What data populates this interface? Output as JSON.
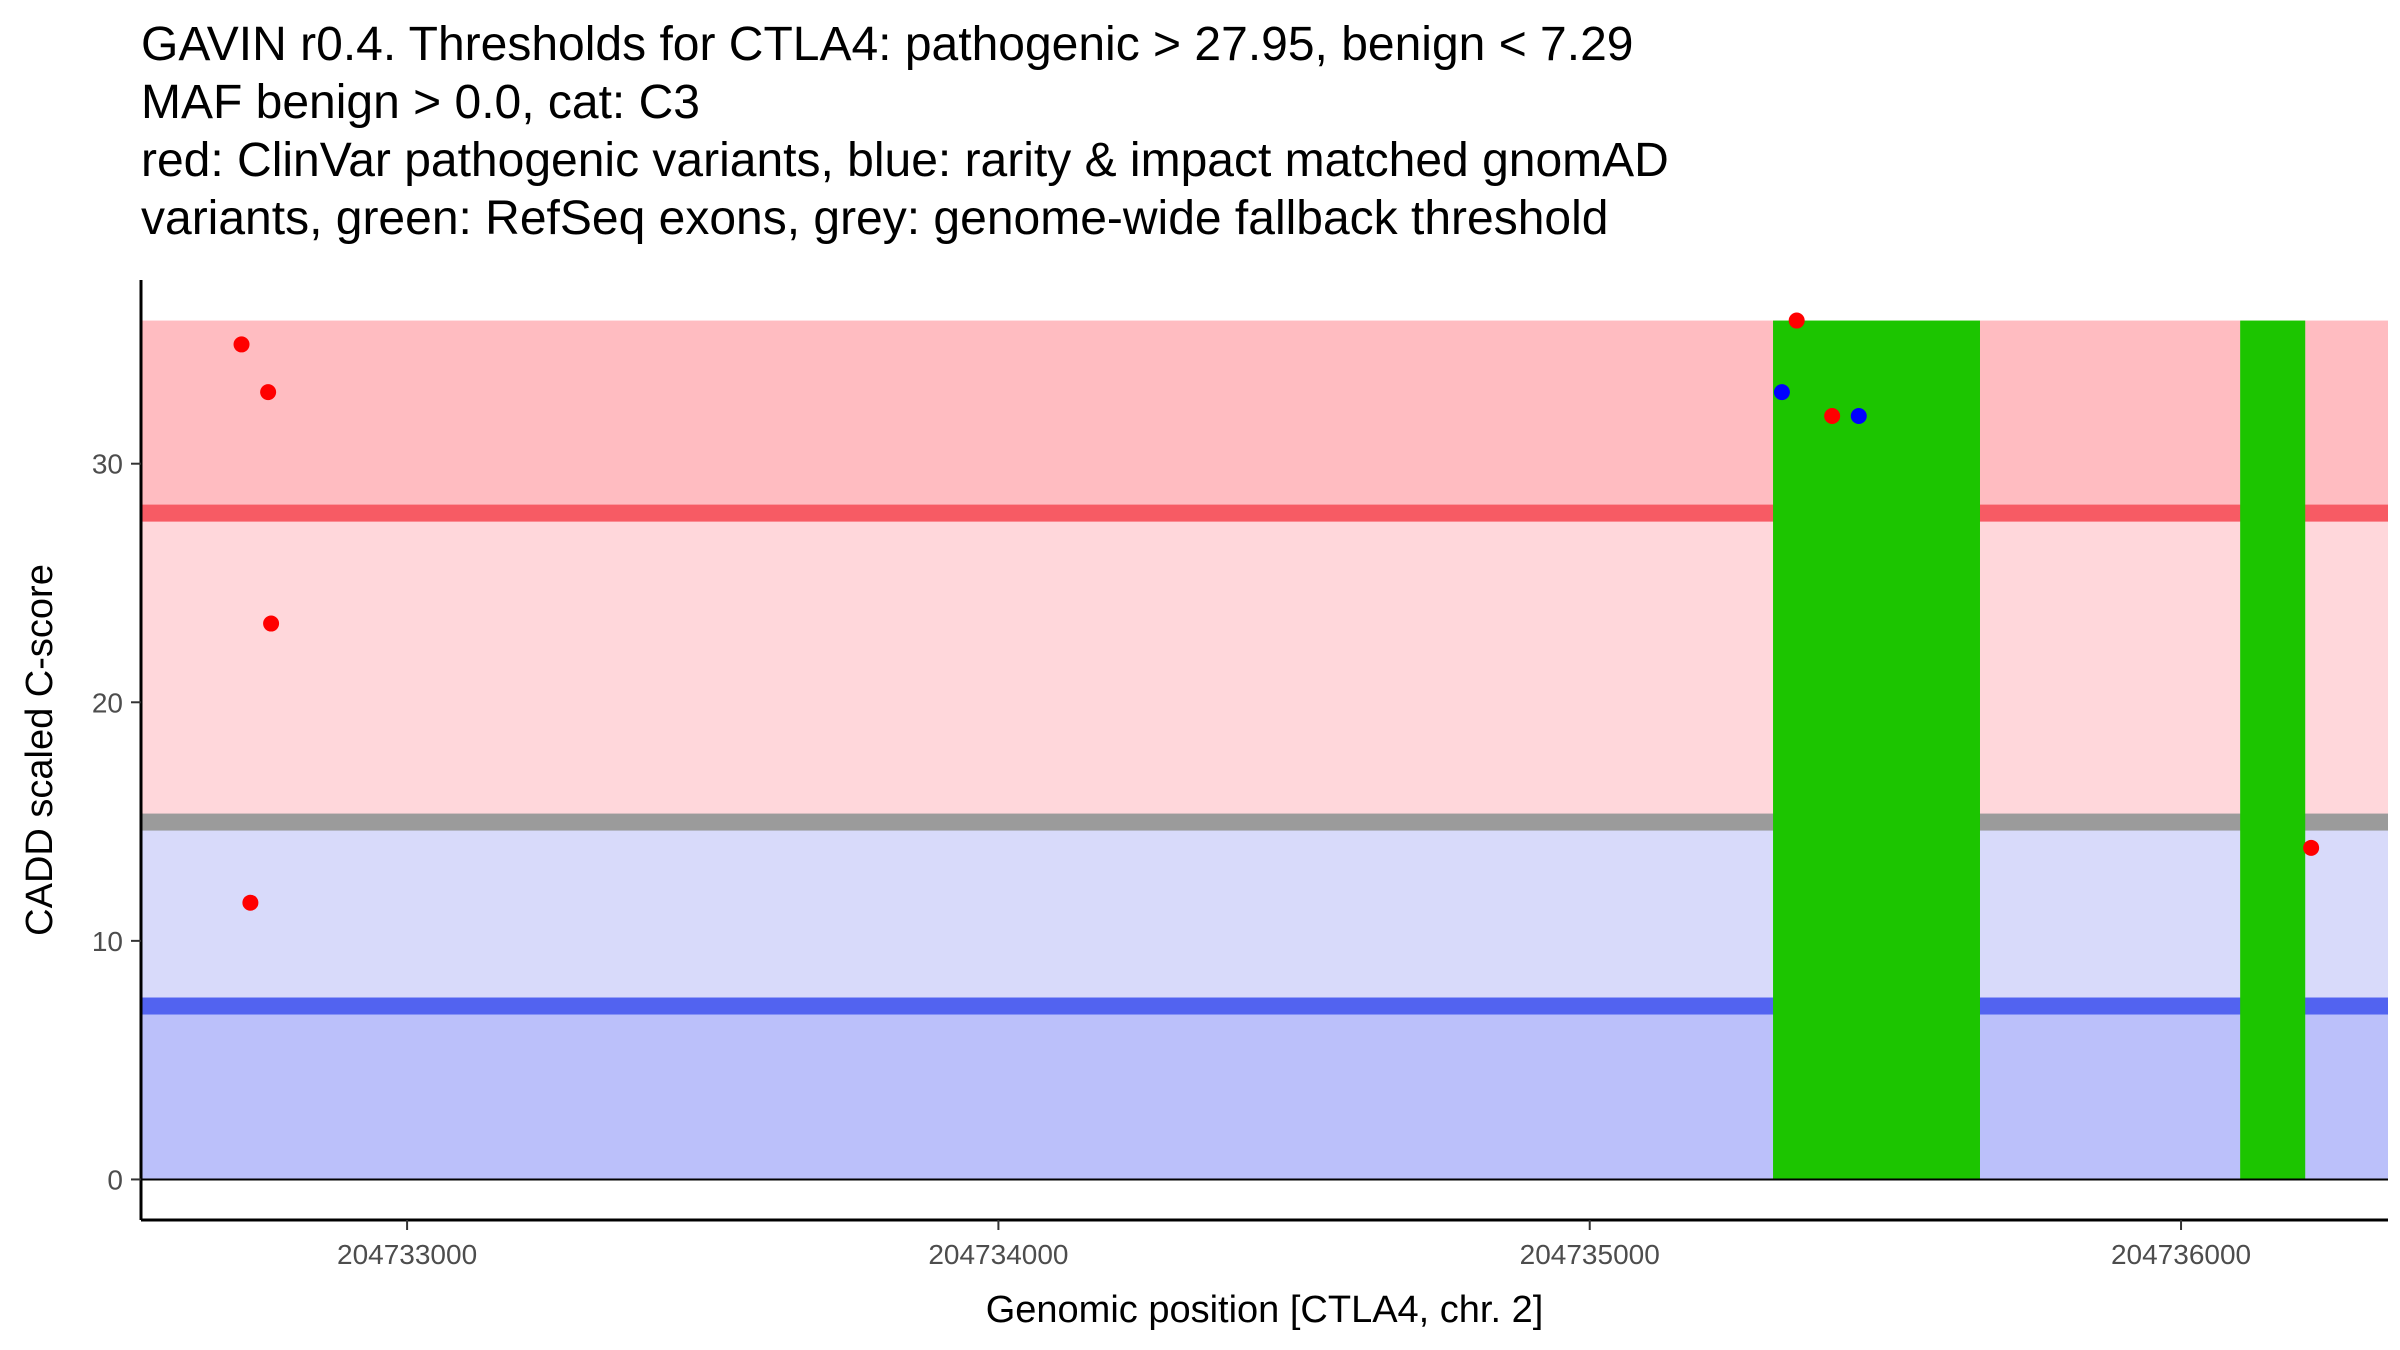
{
  "chart_data": {
    "type": "scatter",
    "title_lines": [
      "GAVIN r0.4. Thresholds for CTLA4: pathogenic > 27.95, benign < 7.29",
      "MAF benign > 0.0, cat: C3",
      "red: ClinVar pathogenic variants, blue: rarity & impact matched gnomAD",
      "variants, green: RefSeq exons, grey: genome-wide fallback threshold"
    ],
    "xlabel": "Genomic position [CTLA4, chr. 2]",
    "ylabel": "CADD scaled C-score",
    "xlim": [
      204732550,
      204736350
    ],
    "ylim": [
      -1.7,
      37.7
    ],
    "xticks": [
      {
        "value": 204733000,
        "label": "204733000"
      },
      {
        "value": 204734000,
        "label": "204734000"
      },
      {
        "value": 204735000,
        "label": "204735000"
      },
      {
        "value": 204736000,
        "label": "204736000"
      }
    ],
    "yticks": [
      {
        "value": 0,
        "label": "0"
      },
      {
        "value": 10,
        "label": "10"
      },
      {
        "value": 20,
        "label": "20"
      },
      {
        "value": 30,
        "label": "30"
      }
    ],
    "bands": [
      {
        "name": "benign-zone",
        "y0": 0,
        "y1": 7.29,
        "color": "#bbc0fa"
      },
      {
        "name": "fallback-benign-zone",
        "y0": 7.29,
        "y1": 15.0,
        "color": "#d8dafa"
      },
      {
        "name": "fallback-pathogenic-zone",
        "y0": 15.0,
        "y1": 27.95,
        "color": "#ffd7db"
      },
      {
        "name": "pathogenic-zone",
        "y0": 27.95,
        "y1": 36.0,
        "color": "#ffbcc1"
      }
    ],
    "threshold_lines": [
      {
        "name": "pathogenic-threshold",
        "y": 27.95,
        "color": "#f75b64"
      },
      {
        "name": "fallback-threshold",
        "y": 15.0,
        "color": "#9b9b9b"
      },
      {
        "name": "benign-threshold",
        "y": 7.29,
        "color": "#5263f0"
      }
    ],
    "exons": [
      {
        "name": "exon-1",
        "start": 204735310,
        "end": 204735660,
        "color": "#1cc500"
      },
      {
        "name": "exon-2",
        "start": 204736100,
        "end": 204736210,
        "color": "#1cc500"
      }
    ],
    "series": [
      {
        "name": "ClinVar pathogenic variants",
        "color": "#ff0000",
        "points": [
          {
            "x": 204732720,
            "y": 35.0
          },
          {
            "x": 204732765,
            "y": 33.0
          },
          {
            "x": 204732770,
            "y": 23.3
          },
          {
            "x": 204732735,
            "y": 11.6
          },
          {
            "x": 204735350,
            "y": 36.0
          },
          {
            "x": 204735410,
            "y": 32.0
          },
          {
            "x": 204736220,
            "y": 13.9
          }
        ]
      },
      {
        "name": "rarity & impact matched gnomAD variants",
        "color": "#0000ff",
        "points": [
          {
            "x": 204735325,
            "y": 33.0
          },
          {
            "x": 204735455,
            "y": 32.0
          }
        ]
      }
    ]
  }
}
